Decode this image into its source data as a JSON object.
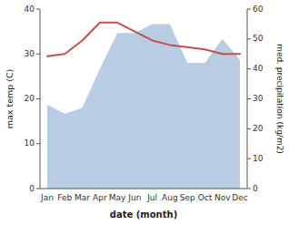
{
  "chart_data": {
    "type": "line",
    "categories": [
      "Jan",
      "Feb",
      "Mar",
      "Apr",
      "May",
      "Jun",
      "Jul",
      "Aug",
      "Sep",
      "Oct",
      "Nov",
      "Dec"
    ],
    "series": [
      {
        "type": "area",
        "axis": "y2",
        "color": "#b8cce4",
        "values": [
          28.0,
          25.0,
          27.0,
          40.0,
          52.0,
          52.0,
          55.0,
          55.0,
          42.0,
          42.0,
          50.0,
          43.0
        ]
      },
      {
        "type": "line",
        "color": "#c0504d",
        "values": [
          29.5,
          30.0,
          33.0,
          37.0,
          37.0,
          35.0,
          33.0,
          32.0,
          31.5,
          31.0,
          30.0,
          30.0
        ]
      }
    ],
    "xlabel": "date (month)",
    "ylabel": "max temp (C)",
    "y2label": "med. precipitation (kg/m2)",
    "ylim": [
      0,
      40
    ],
    "yticks": [
      0,
      10,
      20,
      30,
      40
    ],
    "y2lim": [
      0,
      60
    ],
    "y2ticks": [
      0,
      10,
      20,
      30,
      40,
      50,
      60
    ],
    "grid": false
  }
}
